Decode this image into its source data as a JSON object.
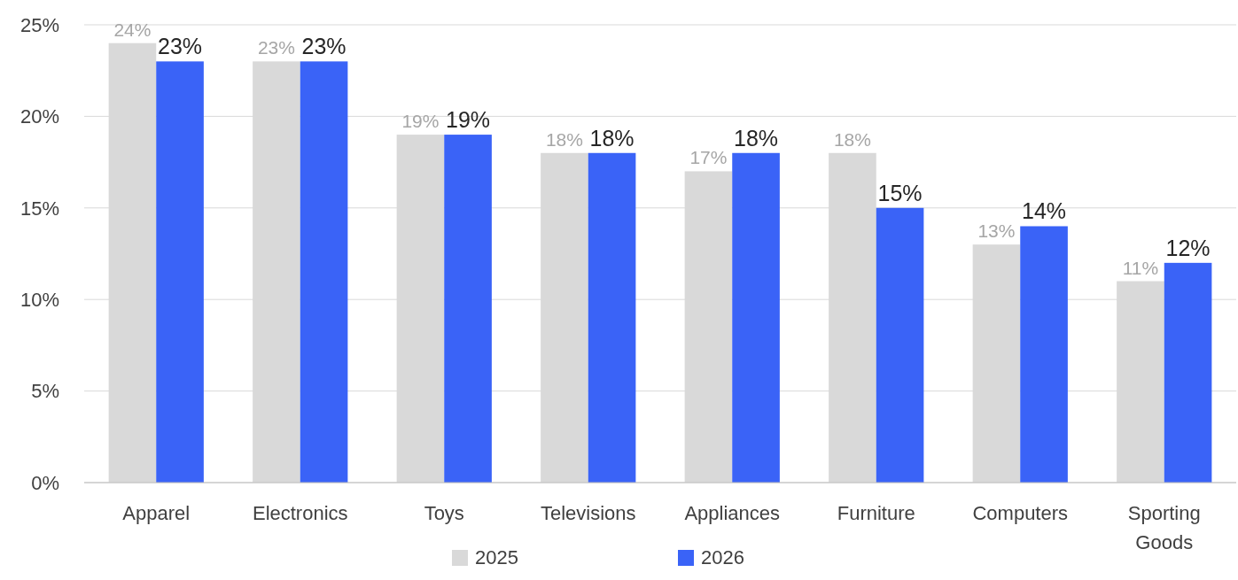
{
  "chart_data": {
    "type": "bar",
    "categories": [
      "Apparel",
      "Electronics",
      "Toys",
      "Televisions",
      "Appliances",
      "Furniture",
      "Computers",
      "Sporting Goods"
    ],
    "series": [
      {
        "name": "2025",
        "color": "#d9d9d9",
        "values": [
          24,
          23,
          19,
          18,
          17,
          18,
          13,
          11
        ],
        "value_labels": [
          "24%",
          "23%",
          "19%",
          "18%",
          "17%",
          "18%",
          "13%",
          "11%"
        ]
      },
      {
        "name": "2026",
        "color": "#3a63f7",
        "values": [
          23,
          23,
          19,
          18,
          18,
          15,
          14,
          12
        ],
        "value_labels": [
          "23%",
          "23%",
          "19%",
          "18%",
          "18%",
          "15%",
          "14%",
          "12%"
        ]
      }
    ],
    "ylim": [
      0,
      25
    ],
    "yticks": [
      {
        "value": 0,
        "label": "0%"
      },
      {
        "value": 5,
        "label": "5%"
      },
      {
        "value": 10,
        "label": "10%"
      },
      {
        "value": 15,
        "label": "15%"
      },
      {
        "value": 20,
        "label": "20%"
      },
      {
        "value": 25,
        "label": "25%"
      }
    ],
    "grid": "y",
    "legend": "bottom"
  }
}
